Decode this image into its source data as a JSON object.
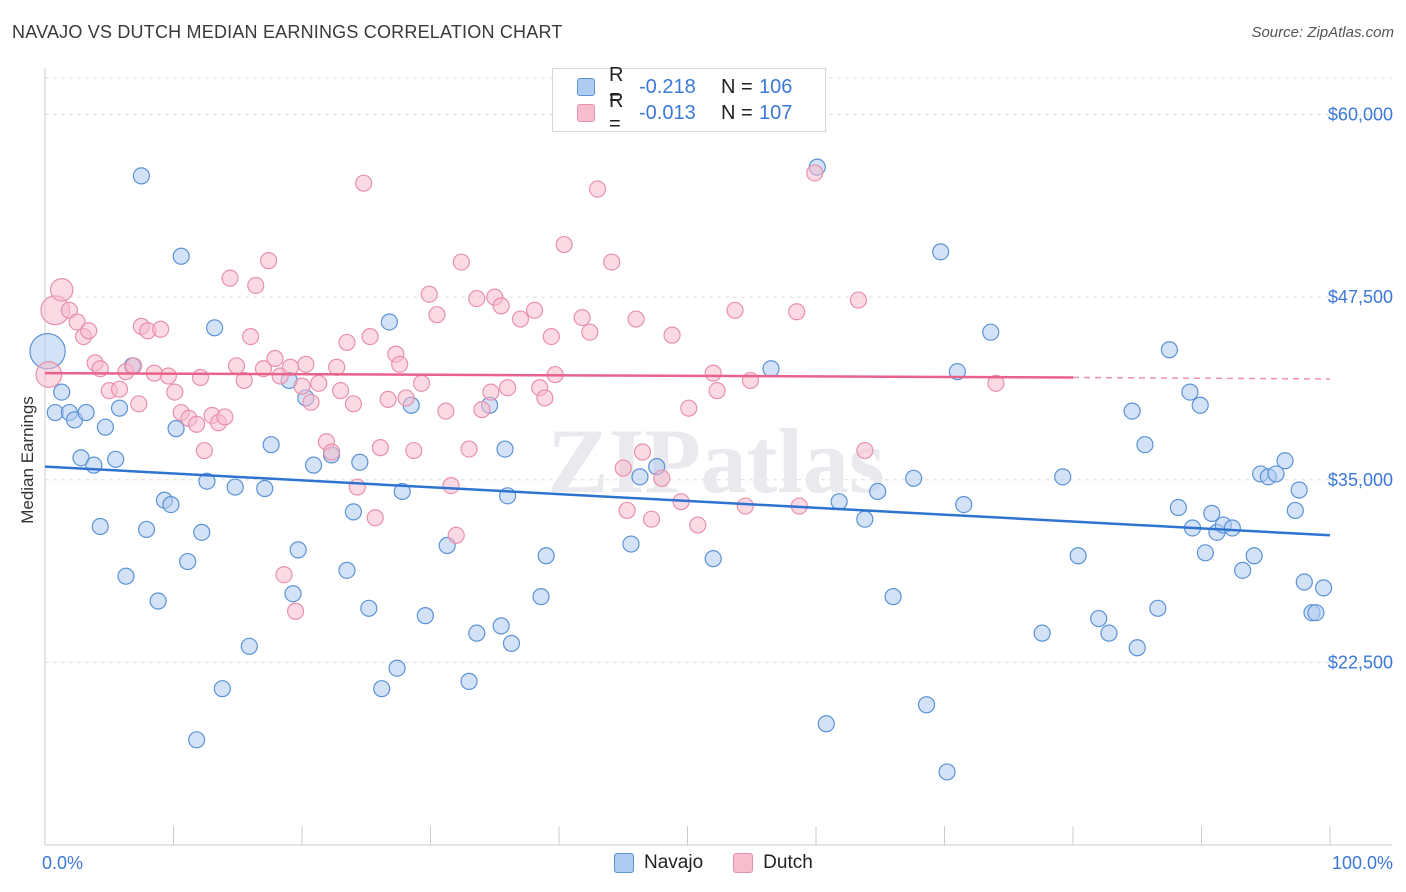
{
  "header": {
    "title": "NAVAJO VS DUTCH MEDIAN EARNINGS CORRELATION CHART",
    "source": "Source: ZipAtlas.com"
  },
  "legend": {
    "navajo": {
      "r_label": "R =",
      "r_value": "-0.218",
      "n_label": "N =",
      "n_value": "106"
    },
    "dutch": {
      "r_label": "R =",
      "r_value": "-0.013",
      "n_label": "N =",
      "n_value": "107"
    }
  },
  "bottom_legend": {
    "navajo": "Navajo",
    "dutch": "Dutch"
  },
  "colors": {
    "navajo_fill": "#aecbf0",
    "navajo_stroke": "#5b93d6",
    "navajo_line": "#2f73d1",
    "dutch_fill": "#f7bccd",
    "dutch_stroke": "#e891ad",
    "dutch_line": "#e8628c",
    "axis_label": "#3c78d8",
    "grid": "#dddddd"
  },
  "chart_data": {
    "type": "scatter",
    "title": "NAVAJO VS DUTCH MEDIAN EARNINGS CORRELATION CHART",
    "xlabel": "",
    "ylabel": "Median Earnings",
    "xlim": [
      0,
      100
    ],
    "ylim": [
      10000,
      62500
    ],
    "x_tick_labels": [
      "0.0%",
      "100.0%"
    ],
    "y_ticks": [
      22500,
      35000,
      47500,
      60000
    ],
    "y_tick_labels": [
      "$22,500",
      "$35,000",
      "$47,500",
      "$60,000"
    ],
    "watermark": "ZIPatlas",
    "series": [
      {
        "name": "Navajo",
        "r": -0.218,
        "n": 106,
        "trend": {
          "x0": 0,
          "y0": 35900,
          "x1": 100,
          "y1": 31200
        },
        "points": [
          [
            0.2,
            43800,
            2.2
          ],
          [
            0.8,
            39600,
            1
          ],
          [
            1.3,
            41000,
            1
          ],
          [
            1.9,
            39600,
            1
          ],
          [
            2.3,
            39100,
            1
          ],
          [
            2.8,
            36500,
            1
          ],
          [
            3.2,
            39600,
            1
          ],
          [
            3.8,
            36000,
            1
          ],
          [
            4.3,
            31800,
            1
          ],
          [
            4.7,
            38600,
            1
          ],
          [
            5.5,
            36400,
            1
          ],
          [
            5.8,
            39900,
            1
          ],
          [
            6.3,
            28400,
            1
          ],
          [
            6.8,
            42800,
            1
          ],
          [
            7.5,
            55800,
            1
          ],
          [
            7.9,
            31600,
            1
          ],
          [
            8.8,
            26700,
            1
          ],
          [
            9.3,
            33600,
            1
          ],
          [
            9.8,
            33300,
            1
          ],
          [
            10.2,
            38500,
            1
          ],
          [
            10.6,
            50300,
            1
          ],
          [
            11.1,
            29400,
            1
          ],
          [
            11.8,
            17200,
            1
          ],
          [
            12.2,
            31400,
            1
          ],
          [
            12.6,
            34900,
            1
          ],
          [
            13.2,
            45400,
            1
          ],
          [
            13.8,
            20700,
            1
          ],
          [
            14.8,
            34500,
            1
          ],
          [
            15.9,
            23600,
            1
          ],
          [
            17.1,
            34400,
            1
          ],
          [
            17.6,
            37400,
            1
          ],
          [
            19.0,
            41800,
            1
          ],
          [
            19.3,
            27200,
            1
          ],
          [
            19.7,
            30200,
            1
          ],
          [
            20.3,
            40600,
            1
          ],
          [
            20.9,
            36000,
            1
          ],
          [
            22.3,
            36700,
            1
          ],
          [
            23.5,
            28800,
            1
          ],
          [
            24.0,
            32800,
            1
          ],
          [
            24.5,
            36200,
            1
          ],
          [
            25.2,
            26200,
            1
          ],
          [
            26.2,
            20700,
            1
          ],
          [
            26.8,
            45800,
            1
          ],
          [
            27.4,
            22100,
            1
          ],
          [
            27.8,
            34200,
            1
          ],
          [
            28.5,
            40100,
            1
          ],
          [
            29.6,
            25700,
            1
          ],
          [
            31.3,
            30500,
            1
          ],
          [
            33.0,
            21200,
            1
          ],
          [
            33.6,
            24500,
            1
          ],
          [
            34.6,
            40100,
            1
          ],
          [
            35.5,
            25000,
            1
          ],
          [
            35.8,
            37100,
            1
          ],
          [
            36.0,
            33900,
            1
          ],
          [
            36.3,
            23800,
            1
          ],
          [
            38.6,
            27000,
            1
          ],
          [
            39.0,
            29800,
            1
          ],
          [
            45.6,
            30600,
            1
          ],
          [
            46.3,
            35200,
            1
          ],
          [
            47.6,
            35900,
            1
          ],
          [
            52.0,
            29600,
            1
          ],
          [
            56.5,
            42600,
            1
          ],
          [
            60.1,
            56400,
            1
          ],
          [
            60.8,
            18300,
            1
          ],
          [
            61.8,
            33500,
            1
          ],
          [
            63.8,
            32300,
            1
          ],
          [
            64.8,
            34200,
            1
          ],
          [
            66.0,
            27000,
            1
          ],
          [
            67.6,
            35100,
            1
          ],
          [
            68.6,
            19600,
            1
          ],
          [
            69.7,
            50600,
            1
          ],
          [
            70.2,
            15000,
            1
          ],
          [
            71.0,
            42400,
            1
          ],
          [
            71.5,
            33300,
            1
          ],
          [
            73.6,
            45100,
            1
          ],
          [
            77.6,
            24500,
            1
          ],
          [
            79.2,
            35200,
            1
          ],
          [
            80.4,
            29800,
            1
          ],
          [
            82.0,
            25500,
            1
          ],
          [
            82.8,
            24500,
            1
          ],
          [
            84.6,
            39700,
            1
          ],
          [
            85.0,
            23500,
            1
          ],
          [
            85.6,
            37400,
            1
          ],
          [
            86.6,
            26200,
            1
          ],
          [
            87.5,
            43900,
            1
          ],
          [
            88.2,
            33100,
            1
          ],
          [
            89.1,
            41000,
            1
          ],
          [
            89.3,
            31700,
            1
          ],
          [
            89.9,
            40100,
            1
          ],
          [
            90.3,
            30000,
            1
          ],
          [
            90.8,
            32700,
            1
          ],
          [
            91.2,
            31400,
            1
          ],
          [
            91.7,
            31900,
            1
          ],
          [
            92.4,
            31700,
            1
          ],
          [
            93.2,
            28800,
            1
          ],
          [
            94.1,
            29800,
            1
          ],
          [
            94.6,
            35400,
            1
          ],
          [
            95.2,
            35200,
            1
          ],
          [
            95.8,
            35400,
            1
          ],
          [
            96.5,
            36300,
            1
          ],
          [
            97.3,
            32900,
            1
          ],
          [
            97.6,
            34300,
            1
          ],
          [
            98.0,
            28000,
            1
          ],
          [
            98.6,
            25900,
            1
          ],
          [
            98.9,
            25900,
            1
          ],
          [
            99.5,
            27600,
            1
          ]
        ]
      },
      {
        "name": "Dutch",
        "r": -0.013,
        "n": 107,
        "trend": {
          "x0": 0,
          "y0": 42300,
          "x1": 80,
          "y1": 42000
        },
        "trend_dashed": {
          "x0": 80,
          "y0": 42000,
          "x1": 100,
          "y1": 41900
        },
        "points": [
          [
            0.3,
            42200,
            1.6
          ],
          [
            0.8,
            46600,
            1.8
          ],
          [
            1.3,
            48000,
            1.4
          ],
          [
            1.9,
            46600,
            1
          ],
          [
            2.5,
            45800,
            1
          ],
          [
            3.0,
            44800,
            1
          ],
          [
            3.4,
            45200,
            1
          ],
          [
            3.9,
            43000,
            1
          ],
          [
            4.3,
            42600,
            1
          ],
          [
            5.0,
            41100,
            1
          ],
          [
            5.8,
            41200,
            1
          ],
          [
            6.3,
            42400,
            1
          ],
          [
            6.9,
            42800,
            1
          ],
          [
            7.3,
            40200,
            1
          ],
          [
            7.5,
            45500,
            1
          ],
          [
            8.0,
            45200,
            1
          ],
          [
            8.5,
            42300,
            1
          ],
          [
            9.0,
            45300,
            1
          ],
          [
            9.6,
            42100,
            1
          ],
          [
            10.1,
            41000,
            1
          ],
          [
            10.6,
            39600,
            1
          ],
          [
            11.2,
            39200,
            1
          ],
          [
            11.8,
            38800,
            1
          ],
          [
            12.1,
            42000,
            1
          ],
          [
            12.4,
            37000,
            1
          ],
          [
            13.0,
            39400,
            1
          ],
          [
            13.5,
            38900,
            1
          ],
          [
            14.0,
            39300,
            1
          ],
          [
            14.4,
            48800,
            1
          ],
          [
            14.9,
            42800,
            1
          ],
          [
            15.5,
            41800,
            1
          ],
          [
            16.0,
            44800,
            1
          ],
          [
            16.4,
            48300,
            1
          ],
          [
            17.0,
            42600,
            1
          ],
          [
            17.4,
            50000,
            1
          ],
          [
            17.9,
            43300,
            1
          ],
          [
            18.3,
            42100,
            1
          ],
          [
            18.6,
            28500,
            1
          ],
          [
            19.1,
            42700,
            1
          ],
          [
            19.5,
            26000,
            1
          ],
          [
            20.0,
            41400,
            1
          ],
          [
            20.3,
            42900,
            1
          ],
          [
            20.7,
            40300,
            1
          ],
          [
            21.3,
            41600,
            1
          ],
          [
            21.9,
            37600,
            1
          ],
          [
            22.3,
            36900,
            1
          ],
          [
            22.7,
            42700,
            1
          ],
          [
            23.0,
            41100,
            1
          ],
          [
            23.5,
            44400,
            1
          ],
          [
            24.0,
            40200,
            1
          ],
          [
            24.3,
            34500,
            1
          ],
          [
            24.8,
            55300,
            1
          ],
          [
            25.3,
            44800,
            1
          ],
          [
            25.7,
            32400,
            1
          ],
          [
            26.1,
            37200,
            1
          ],
          [
            26.7,
            40500,
            1
          ],
          [
            27.3,
            43600,
            1
          ],
          [
            27.6,
            42900,
            1
          ],
          [
            28.1,
            40600,
            1
          ],
          [
            28.7,
            37000,
            1
          ],
          [
            29.3,
            41600,
            1
          ],
          [
            29.9,
            47700,
            1
          ],
          [
            30.5,
            46300,
            1
          ],
          [
            31.2,
            39700,
            1
          ],
          [
            31.6,
            34600,
            1
          ],
          [
            32.0,
            31200,
            1
          ],
          [
            32.4,
            49900,
            1
          ],
          [
            33.0,
            37100,
            1
          ],
          [
            33.6,
            47400,
            1
          ],
          [
            34.0,
            39800,
            1
          ],
          [
            34.7,
            41000,
            1
          ],
          [
            35.0,
            47500,
            1
          ],
          [
            35.5,
            46900,
            1
          ],
          [
            36.0,
            41300,
            1
          ],
          [
            37.0,
            46000,
            1
          ],
          [
            38.1,
            46600,
            1
          ],
          [
            38.5,
            41300,
            1
          ],
          [
            38.9,
            40600,
            1
          ],
          [
            39.4,
            44800,
            1
          ],
          [
            39.7,
            42200,
            1
          ],
          [
            40.4,
            51100,
            1
          ],
          [
            41.8,
            46100,
            1
          ],
          [
            42.4,
            45100,
            1
          ],
          [
            43.0,
            54900,
            1
          ],
          [
            44.1,
            49900,
            1
          ],
          [
            45.0,
            35800,
            1
          ],
          [
            45.3,
            32900,
            1
          ],
          [
            46.0,
            46000,
            1
          ],
          [
            46.5,
            36900,
            1
          ],
          [
            47.2,
            32300,
            1
          ],
          [
            48.0,
            35100,
            1
          ],
          [
            48.8,
            44900,
            1
          ],
          [
            49.5,
            33500,
            1
          ],
          [
            50.1,
            39900,
            1
          ],
          [
            50.8,
            31900,
            1
          ],
          [
            52.0,
            42300,
            1
          ],
          [
            52.3,
            41100,
            1
          ],
          [
            53.7,
            46600,
            1
          ],
          [
            54.0,
            59800,
            1
          ],
          [
            54.5,
            33200,
            1
          ],
          [
            54.9,
            41800,
            1
          ],
          [
            58.5,
            46500,
            1
          ],
          [
            58.7,
            33200,
            1
          ],
          [
            59.9,
            56000,
            1
          ],
          [
            63.3,
            47300,
            1
          ],
          [
            63.8,
            37000,
            1
          ],
          [
            74.0,
            41600,
            1
          ]
        ]
      }
    ]
  }
}
